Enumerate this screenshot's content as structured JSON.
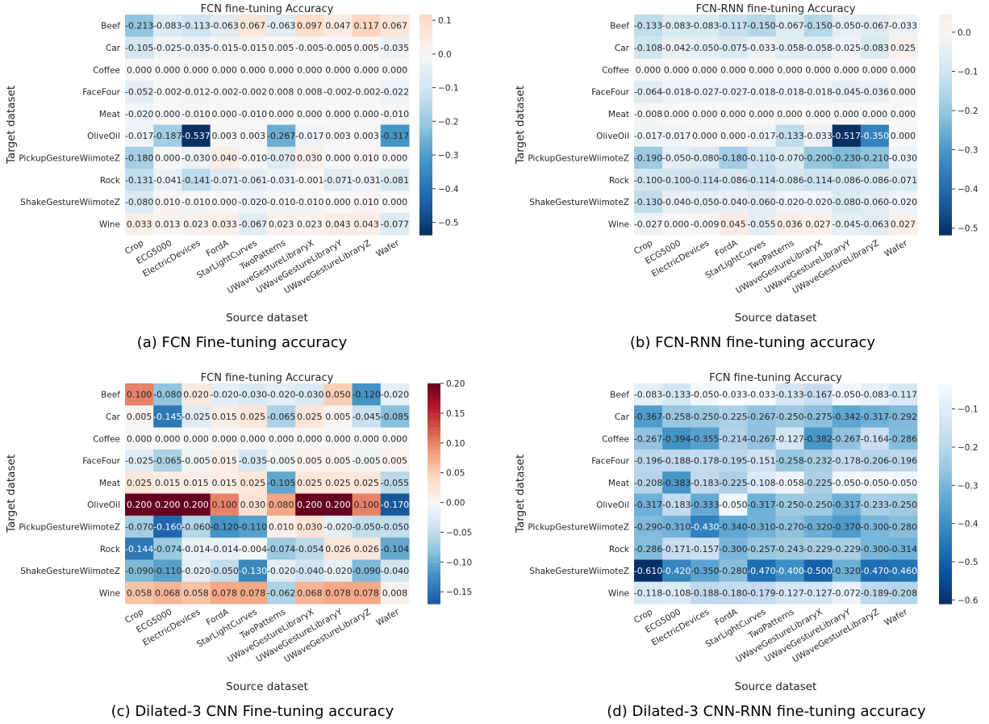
{
  "chart_data": [
    {
      "type": "heatmap",
      "panel": "a",
      "title": "FCN fine-tuning Accuracy",
      "caption": "(a)  FCN Fine-tuning accuracy",
      "xlabel": "Source dataset",
      "ylabel": "Target dataset",
      "x_categories": [
        "Crop",
        "ECG5000",
        "ElectricDevices",
        "FordA",
        "StarLightCurves",
        "TwoPatterns",
        "UWaveGestureLibraryX",
        "UWaveGestureLibraryY",
        "UWaveGestureLibraryZ",
        "Wafer"
      ],
      "y_categories": [
        "Beef",
        "Car",
        "Coffee",
        "FaceFour",
        "Meat",
        "OliveOil",
        "PickupGestureWiimoteZ",
        "Rock",
        "ShakeGestureWiimoteZ",
        "Wine"
      ],
      "colormap": "RdBu_r (blue negative, red positive, centered at 0)",
      "vmin": -0.537,
      "vmax": 0.117,
      "colorbar_ticks": [
        0.1,
        0.0,
        -0.1,
        -0.2,
        -0.3,
        -0.4,
        -0.5
      ],
      "colorbar_tick_labels": [
        "0.1",
        "0.0",
        "−0.1",
        "−0.2",
        "−0.3",
        "−0.4",
        "−0.5"
      ],
      "values": [
        [
          -0.213,
          -0.083,
          -0.113,
          -0.063,
          0.067,
          -0.063,
          0.097,
          0.047,
          0.117,
          0.067
        ],
        [
          -0.105,
          -0.025,
          -0.035,
          -0.015,
          -0.015,
          0.005,
          -0.005,
          -0.005,
          0.005,
          -0.035
        ],
        [
          0.0,
          0.0,
          0.0,
          0.0,
          0.0,
          0.0,
          0.0,
          0.0,
          0.0,
          0.0
        ],
        [
          -0.052,
          -0.002,
          -0.012,
          -0.002,
          -0.002,
          0.008,
          0.008,
          -0.002,
          -0.002,
          -0.022
        ],
        [
          -0.02,
          0.0,
          -0.01,
          0.0,
          -0.01,
          0.0,
          0.0,
          0.0,
          0.0,
          -0.01
        ],
        [
          -0.017,
          -0.187,
          -0.537,
          0.003,
          0.003,
          -0.267,
          -0.017,
          0.003,
          0.003,
          -0.317
        ],
        [
          -0.18,
          0.0,
          -0.03,
          0.04,
          -0.01,
          -0.07,
          0.03,
          0.0,
          0.01,
          0.0
        ],
        [
          -0.131,
          -0.041,
          -0.141,
          -0.071,
          -0.061,
          -0.031,
          -0.001,
          -0.071,
          -0.031,
          -0.081
        ],
        [
          -0.08,
          0.01,
          -0.01,
          0.0,
          -0.02,
          -0.01,
          -0.01,
          0.0,
          0.01,
          0.0
        ],
        [
          0.033,
          0.013,
          0.023,
          0.033,
          -0.067,
          0.023,
          0.023,
          0.043,
          0.043,
          -0.077
        ]
      ]
    },
    {
      "type": "heatmap",
      "panel": "b",
      "title": "FCN-RNN fine-tuning Accuracy",
      "caption": "(b)  FCN-RNN fine-tuning accuracy",
      "xlabel": "Source dataset",
      "ylabel": "Target dataset",
      "x_categories": [
        "Crop",
        "ECG5000",
        "ElectricDevices",
        "FordA",
        "StarLightCurves",
        "TwoPatterns",
        "UWaveGestureLibraryX",
        "UWaveGestureLibraryY",
        "UWaveGestureLibraryZ",
        "Wafer"
      ],
      "y_categories": [
        "Beef",
        "Car",
        "Coffee",
        "FaceFour",
        "Meat",
        "OliveOil",
        "PickupGestureWiimoteZ",
        "Rock",
        "ShakeGestureWiimoteZ",
        "Wine"
      ],
      "colormap": "RdBu_r (blue negative, red positive, centered at 0)",
      "vmin": -0.517,
      "vmax": 0.045,
      "colorbar_ticks": [
        0.0,
        -0.1,
        -0.2,
        -0.3,
        -0.4,
        -0.5
      ],
      "colorbar_tick_labels": [
        "0.0",
        "−0.1",
        "−0.2",
        "−0.3",
        "−0.4",
        "−0.5"
      ],
      "values": [
        [
          -0.133,
          -0.083,
          -0.083,
          -0.117,
          -0.15,
          -0.067,
          -0.15,
          -0.05,
          -0.067,
          -0.033
        ],
        [
          -0.108,
          -0.042,
          -0.05,
          -0.075,
          -0.033,
          -0.058,
          -0.058,
          -0.025,
          -0.083,
          0.025
        ],
        [
          0.0,
          0.0,
          0.0,
          0.0,
          0.0,
          0.0,
          0.0,
          0.0,
          0.0,
          0.0
        ],
        [
          -0.064,
          -0.018,
          -0.027,
          -0.027,
          -0.018,
          -0.018,
          -0.018,
          -0.045,
          -0.036,
          0.0
        ],
        [
          -0.008,
          0.0,
          0.0,
          0.0,
          0.0,
          0.0,
          0.0,
          0.0,
          0.0,
          0.0
        ],
        [
          -0.017,
          -0.017,
          0.0,
          0.0,
          -0.017,
          -0.133,
          -0.033,
          -0.517,
          -0.35,
          0.0
        ],
        [
          -0.19,
          -0.05,
          -0.08,
          -0.18,
          -0.11,
          -0.07,
          -0.2,
          -0.23,
          -0.21,
          -0.03
        ],
        [
          -0.1,
          -0.1,
          -0.114,
          -0.086,
          -0.114,
          -0.086,
          -0.114,
          -0.086,
          -0.086,
          -0.071
        ],
        [
          -0.13,
          -0.04,
          -0.05,
          -0.04,
          -0.06,
          -0.02,
          -0.02,
          -0.08,
          -0.06,
          -0.02
        ],
        [
          -0.027,
          0.0,
          -0.009,
          0.045,
          -0.055,
          0.036,
          0.027,
          -0.045,
          -0.063,
          0.027
        ]
      ]
    },
    {
      "type": "heatmap",
      "panel": "c",
      "title": "FCN fine-tuning Accuracy",
      "caption": "(c)  Dilated-3 CNN Fine-tuning accuracy",
      "xlabel": "Source dataset",
      "ylabel": "Target dataset",
      "x_categories": [
        "Crop",
        "ECG5000",
        "ElectricDevices",
        "FordA",
        "StarLightCurves",
        "TwoPatterns",
        "UWaveGestureLibraryX",
        "UWaveGestureLibraryY",
        "UWaveGestureLibraryZ",
        "Wafer"
      ],
      "y_categories": [
        "Beef",
        "Car",
        "Coffee",
        "FaceFour",
        "Meat",
        "OliveOil",
        "PickupGestureWiimoteZ",
        "Rock",
        "ShakeGestureWiimoteZ",
        "Wine"
      ],
      "colormap": "RdBu_r (blue negative, red positive, centered at 0)",
      "vmin": -0.17,
      "vmax": 0.2,
      "colorbar_ticks": [
        0.2,
        0.15,
        0.1,
        0.05,
        0.0,
        -0.05,
        -0.1,
        -0.15
      ],
      "colorbar_tick_labels": [
        "0.20",
        "0.15",
        "0.10",
        "0.05",
        "0.00",
        "−0.05",
        "−0.10",
        "−0.15"
      ],
      "values": [
        [
          0.1,
          -0.08,
          0.02,
          -0.02,
          -0.03,
          -0.02,
          -0.03,
          0.05,
          -0.12,
          -0.02
        ],
        [
          0.005,
          -0.145,
          -0.025,
          0.015,
          0.025,
          -0.065,
          0.025,
          0.005,
          -0.045,
          -0.085
        ],
        [
          0.0,
          0.0,
          0.0,
          0.0,
          0.0,
          0.0,
          0.0,
          0.0,
          0.0,
          0.0
        ],
        [
          -0.025,
          -0.065,
          -0.005,
          0.015,
          -0.035,
          -0.005,
          0.005,
          0.005,
          -0.005,
          0.005
        ],
        [
          0.025,
          0.015,
          0.015,
          0.015,
          0.025,
          -0.105,
          0.025,
          0.025,
          0.025,
          -0.055
        ],
        [
          0.2,
          0.2,
          0.2,
          0.1,
          0.03,
          0.08,
          0.2,
          0.2,
          0.1,
          -0.17
        ],
        [
          -0.07,
          -0.16,
          -0.06,
          -0.12,
          -0.11,
          0.01,
          0.03,
          -0.02,
          -0.05,
          -0.05
        ],
        [
          -0.144,
          -0.074,
          -0.014,
          -0.014,
          -0.004,
          -0.074,
          -0.054,
          0.026,
          0.026,
          -0.104
        ],
        [
          -0.09,
          -0.11,
          -0.02,
          -0.05,
          -0.13,
          -0.02,
          -0.04,
          -0.02,
          -0.09,
          -0.04
        ],
        [
          0.058,
          0.068,
          0.058,
          0.078,
          0.078,
          -0.062,
          0.068,
          0.078,
          0.078,
          0.008
        ]
      ]
    },
    {
      "type": "heatmap",
      "panel": "d",
      "title": "FCN fine-tuning Accuracy",
      "caption": "(d)  Dilated-3 CNN-RNN fine-tuning accuracy",
      "xlabel": "Source dataset",
      "ylabel": "Target dataset",
      "x_categories": [
        "Crop",
        "ECG5000",
        "ElectricDevices",
        "FordA",
        "StarLightCurves",
        "TwoPatterns",
        "UWaveGestureLibraryX",
        "UWaveGestureLibraryY",
        "UWaveGestureLibraryZ",
        "Wafer"
      ],
      "y_categories": [
        "Beef",
        "Car",
        "Coffee",
        "FaceFour",
        "Meat",
        "OliveOil",
        "PickupGestureWiimoteZ",
        "Rock",
        "ShakeGestureWiimoteZ",
        "Wine"
      ],
      "colormap": "Blues_r (dark blue = most negative)",
      "vmin": -0.61,
      "vmax": -0.033,
      "colorbar_ticks": [
        -0.1,
        -0.2,
        -0.3,
        -0.4,
        -0.5,
        -0.6
      ],
      "colorbar_tick_labels": [
        "−0.1",
        "−0.2",
        "−0.3",
        "−0.4",
        "−0.5",
        "−0.6"
      ],
      "values": [
        [
          -0.083,
          -0.133,
          -0.05,
          -0.033,
          -0.033,
          -0.133,
          -0.167,
          -0.05,
          -0.083,
          -0.117
        ],
        [
          -0.367,
          -0.258,
          -0.25,
          -0.225,
          -0.267,
          -0.25,
          -0.275,
          -0.342,
          -0.317,
          -0.292
        ],
        [
          -0.267,
          -0.394,
          -0.355,
          -0.214,
          -0.267,
          -0.127,
          -0.382,
          -0.267,
          -0.164,
          -0.286
        ],
        [
          -0.196,
          -0.188,
          -0.178,
          -0.195,
          -0.151,
          -0.258,
          -0.232,
          -0.178,
          -0.206,
          -0.196
        ],
        [
          -0.208,
          -0.383,
          -0.183,
          -0.225,
          -0.108,
          -0.058,
          -0.225,
          -0.05,
          -0.05,
          -0.05
        ],
        [
          -0.317,
          -0.183,
          -0.333,
          -0.05,
          -0.317,
          -0.25,
          -0.25,
          -0.317,
          -0.233,
          -0.25
        ],
        [
          -0.29,
          -0.31,
          -0.43,
          -0.34,
          -0.31,
          -0.27,
          -0.32,
          -0.37,
          -0.3,
          -0.28
        ],
        [
          -0.286,
          -0.171,
          -0.157,
          -0.3,
          -0.257,
          -0.243,
          -0.229,
          -0.229,
          -0.3,
          -0.314
        ],
        [
          -0.61,
          -0.42,
          -0.35,
          -0.28,
          -0.47,
          -0.4,
          -0.5,
          -0.32,
          -0.47,
          -0.46
        ],
        [
          -0.118,
          -0.108,
          -0.188,
          -0.18,
          -0.179,
          -0.127,
          -0.127,
          -0.072,
          -0.189,
          -0.208
        ]
      ]
    }
  ]
}
